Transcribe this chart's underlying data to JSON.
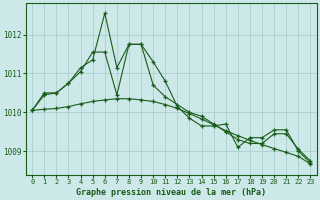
{
  "title": "Graphe pression niveau de la mer (hPa)",
  "background_color": "#cce8e8",
  "plot_bg_color": "#cce8e8",
  "grid_color": "#aacece",
  "line_color": "#1a5c1a",
  "xlim": [
    -0.5,
    23.5
  ],
  "ylim": [
    1008.4,
    1012.8
  ],
  "yticks": [
    1009,
    1010,
    1011,
    1012
  ],
  "xticks": [
    0,
    1,
    2,
    3,
    4,
    5,
    6,
    7,
    8,
    9,
    10,
    11,
    12,
    13,
    14,
    15,
    16,
    17,
    18,
    19,
    20,
    21,
    22,
    23
  ],
  "series1": [
    1010.05,
    1010.5,
    1010.5,
    1010.75,
    1011.15,
    1011.35,
    1012.55,
    1011.15,
    1011.75,
    1011.75,
    1011.3,
    1010.8,
    1010.15,
    1009.85,
    1009.65,
    1009.65,
    1009.7,
    1009.1,
    1009.35,
    1009.35,
    1009.55,
    1009.55,
    1009.0,
    1008.7
  ],
  "series2": [
    1010.05,
    1010.45,
    1010.5,
    1010.75,
    1011.05,
    1011.55,
    1011.55,
    1010.45,
    1011.75,
    1011.75,
    1010.7,
    1010.4,
    1010.2,
    1010.0,
    1009.9,
    1009.7,
    1009.5,
    1009.3,
    1009.2,
    1009.2,
    1009.45,
    1009.45,
    1009.05,
    1008.75
  ],
  "series3": [
    1010.05,
    1010.08,
    1010.1,
    1010.15,
    1010.22,
    1010.28,
    1010.32,
    1010.35,
    1010.35,
    1010.32,
    1010.28,
    1010.2,
    1010.1,
    1009.97,
    1009.83,
    1009.68,
    1009.53,
    1009.4,
    1009.28,
    1009.17,
    1009.07,
    1008.97,
    1008.87,
    1008.67
  ]
}
